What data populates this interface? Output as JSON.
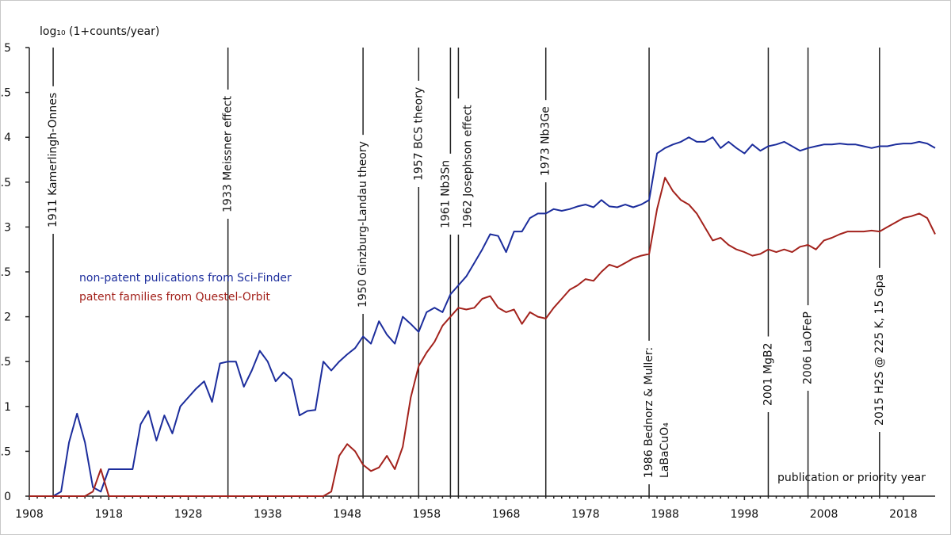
{
  "chart_data": {
    "type": "line",
    "y_label": "log₁₀ (1+counts/year)",
    "x_label": "publication or priority year",
    "xlim": [
      1908,
      2022
    ],
    "xticks": [
      1908,
      1918,
      1928,
      1938,
      1948,
      1958,
      1968,
      1978,
      1988,
      1998,
      2008,
      2018
    ],
    "ylim": [
      0,
      5
    ],
    "yticks": [
      0,
      {
        "value": 0.5,
        "label": ".5"
      },
      1,
      {
        "value": 1.5,
        "label": ".5"
      },
      2,
      {
        "value": 2.5,
        "label": ".5"
      },
      3,
      {
        "value": 3.5,
        "label": ".5"
      },
      4,
      {
        "value": 4.5,
        "label": ".5"
      },
      5
    ],
    "grid": false,
    "x": [
      1908,
      1909,
      1910,
      1911,
      1912,
      1913,
      1914,
      1915,
      1916,
      1917,
      1918,
      1919,
      1920,
      1921,
      1922,
      1923,
      1924,
      1925,
      1926,
      1927,
      1928,
      1929,
      1930,
      1931,
      1932,
      1933,
      1934,
      1935,
      1936,
      1937,
      1938,
      1939,
      1940,
      1941,
      1942,
      1943,
      1944,
      1945,
      1946,
      1947,
      1948,
      1949,
      1950,
      1951,
      1952,
      1953,
      1954,
      1955,
      1956,
      1957,
      1958,
      1959,
      1960,
      1961,
      1962,
      1963,
      1964,
      1965,
      1966,
      1967,
      1968,
      1969,
      1970,
      1971,
      1972,
      1973,
      1974,
      1975,
      1976,
      1977,
      1978,
      1979,
      1980,
      1981,
      1982,
      1983,
      1984,
      1985,
      1986,
      1987,
      1988,
      1989,
      1990,
      1991,
      1992,
      1993,
      1994,
      1995,
      1996,
      1997,
      1998,
      1999,
      2000,
      2001,
      2002,
      2003,
      2004,
      2005,
      2006,
      2007,
      2008,
      2009,
      2010,
      2011,
      2012,
      2013,
      2014,
      2015,
      2016,
      2017,
      2018,
      2019,
      2020,
      2021,
      2022
    ],
    "series": [
      {
        "name": "non-patent pulications from Sci-Finder",
        "color": "#1c2d9c",
        "values": [
          0,
          0,
          0,
          0,
          0.05,
          0.6,
          0.92,
          0.6,
          0.1,
          0.05,
          0.3,
          0.3,
          0.3,
          0.3,
          0.8,
          0.95,
          0.62,
          0.9,
          0.7,
          1.0,
          1.1,
          1.2,
          1.28,
          1.05,
          1.48,
          1.5,
          1.5,
          1.22,
          1.4,
          1.62,
          1.5,
          1.28,
          1.38,
          1.3,
          0.9,
          0.95,
          0.96,
          1.5,
          1.4,
          1.5,
          1.58,
          1.65,
          1.78,
          1.7,
          1.95,
          1.8,
          1.7,
          2.0,
          1.92,
          1.83,
          2.05,
          2.1,
          2.05,
          2.25,
          2.35,
          2.45,
          2.6,
          2.75,
          2.92,
          2.9,
          2.72,
          2.95,
          2.95,
          3.1,
          3.15,
          3.15,
          3.2,
          3.18,
          3.2,
          3.23,
          3.25,
          3.22,
          3.3,
          3.23,
          3.22,
          3.25,
          3.22,
          3.25,
          3.3,
          3.82,
          3.88,
          3.92,
          3.95,
          4.0,
          3.95,
          3.95,
          4.0,
          3.88,
          3.95,
          3.88,
          3.82,
          3.92,
          3.85,
          3.9,
          3.92,
          3.95,
          3.9,
          3.85,
          3.88,
          3.9,
          3.92,
          3.92,
          3.93,
          3.92,
          3.92,
          3.9,
          3.88,
          3.9,
          3.9,
          3.92,
          3.93,
          3.93,
          3.95,
          3.93,
          3.88
        ]
      },
      {
        "name": "patent families from Questel-Orbit",
        "color": "#a3221c",
        "values": [
          0,
          0,
          0,
          0,
          0,
          0,
          0,
          0,
          0.05,
          0.3,
          0,
          0,
          0,
          0,
          0,
          0,
          0,
          0,
          0,
          0,
          0,
          0,
          0,
          0,
          0,
          0,
          0,
          0,
          0,
          0,
          0,
          0,
          0,
          0,
          0,
          0,
          0,
          0,
          0.05,
          0.45,
          0.58,
          0.5,
          0.35,
          0.28,
          0.32,
          0.45,
          0.3,
          0.55,
          1.1,
          1.45,
          1.6,
          1.72,
          1.9,
          2.0,
          2.1,
          2.08,
          2.1,
          2.2,
          2.23,
          2.1,
          2.05,
          2.08,
          1.92,
          2.05,
          2.0,
          1.98,
          2.1,
          2.2,
          2.3,
          2.35,
          2.42,
          2.4,
          2.5,
          2.58,
          2.55,
          2.6,
          2.65,
          2.68,
          2.7,
          3.2,
          3.55,
          3.4,
          3.3,
          3.25,
          3.15,
          3.0,
          2.85,
          2.88,
          2.8,
          2.75,
          2.72,
          2.68,
          2.7,
          2.75,
          2.72,
          2.75,
          2.72,
          2.78,
          2.8,
          2.75,
          2.85,
          2.88,
          2.92,
          2.95,
          2.95,
          2.95,
          2.96,
          2.95,
          3.0,
          3.05,
          3.1,
          3.12,
          3.15,
          3.1,
          2.92
        ]
      }
    ],
    "events": [
      {
        "x": 1911,
        "label": [
          "1911 Kamerlingh-Onnes"
        ]
      },
      {
        "x": 1933,
        "label": [
          "1933 Meissner effect"
        ]
      },
      {
        "x": 1950,
        "label": [
          "1950 Ginzburg-Landau theory"
        ]
      },
      {
        "x": 1957,
        "label": [
          "1957 BCS theory"
        ]
      },
      {
        "x": 1961,
        "label": [
          "1961 Nb3Sn"
        ]
      },
      {
        "x": 1962,
        "label": [
          "1962 Josephson effect"
        ]
      },
      {
        "x": 1973,
        "label": [
          "1973 Nb3Ge"
        ]
      },
      {
        "x": 1986,
        "label": [
          "1986 Bednorz &  Muller:",
          "LaBaCuO₄"
        ]
      },
      {
        "x": 2001,
        "label": [
          "2001 MgB2"
        ]
      },
      {
        "x": 2006,
        "label": [
          "2006 LaOFeP"
        ]
      },
      {
        "x": 2015,
        "label": [
          "2015 H2S @ 225 K, 15 Gpa"
        ]
      }
    ]
  }
}
